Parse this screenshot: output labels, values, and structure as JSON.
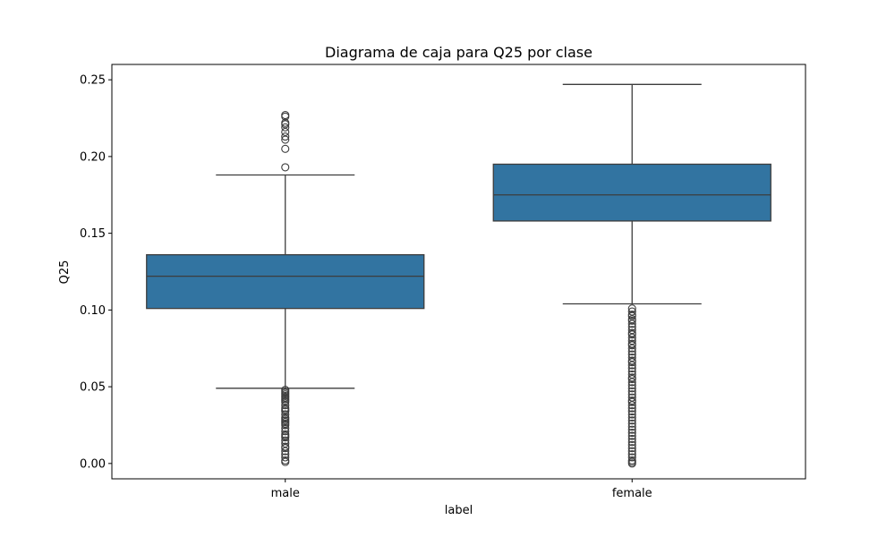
{
  "chart_data": {
    "type": "box",
    "title": "Diagrama de caja para Q25 por clase",
    "xlabel": "label",
    "ylabel": "Q25",
    "ylim": [
      -0.01,
      0.26
    ],
    "yticks": [
      "0.00",
      "0.05",
      "0.10",
      "0.15",
      "0.20",
      "0.25"
    ],
    "ytick_values": [
      0,
      0.05,
      0.1,
      0.15,
      0.2,
      0.25
    ],
    "box_color": "#3274a1",
    "line_color": "#3d3d3d",
    "categories": [
      "male",
      "female"
    ],
    "boxes": [
      {
        "category": "male",
        "whisker_low": 0.049,
        "q1": 0.101,
        "median": 0.122,
        "q3": 0.136,
        "whisker_high": 0.188,
        "outliers": [
          0.227,
          0.226,
          0.222,
          0.221,
          0.219,
          0.216,
          0.213,
          0.211,
          0.205,
          0.193,
          0.048,
          0.047,
          0.046,
          0.045,
          0.044,
          0.043,
          0.042,
          0.041,
          0.04,
          0.038,
          0.036,
          0.035,
          0.034,
          0.032,
          0.03,
          0.029,
          0.028,
          0.027,
          0.026,
          0.025,
          0.023,
          0.021,
          0.019,
          0.018,
          0.017,
          0.015,
          0.013,
          0.011,
          0.01,
          0.008,
          0.006,
          0.004,
          0.002,
          0.001
        ]
      },
      {
        "category": "female",
        "whisker_low": 0.104,
        "q1": 0.158,
        "median": 0.175,
        "q3": 0.195,
        "whisker_high": 0.247,
        "outliers": [
          0.101,
          0.099,
          0.097,
          0.096,
          0.094,
          0.093,
          0.091,
          0.089,
          0.087,
          0.085,
          0.084,
          0.082,
          0.08,
          0.078,
          0.077,
          0.075,
          0.073,
          0.071,
          0.069,
          0.067,
          0.066,
          0.064,
          0.062,
          0.06,
          0.058,
          0.056,
          0.055,
          0.053,
          0.051,
          0.049,
          0.047,
          0.045,
          0.043,
          0.041,
          0.04,
          0.038,
          0.036,
          0.034,
          0.032,
          0.03,
          0.028,
          0.026,
          0.024,
          0.022,
          0.02,
          0.018,
          0.016,
          0.014,
          0.012,
          0.01,
          0.008,
          0.006,
          0.004,
          0.002,
          0.001,
          0.0
        ]
      }
    ]
  }
}
